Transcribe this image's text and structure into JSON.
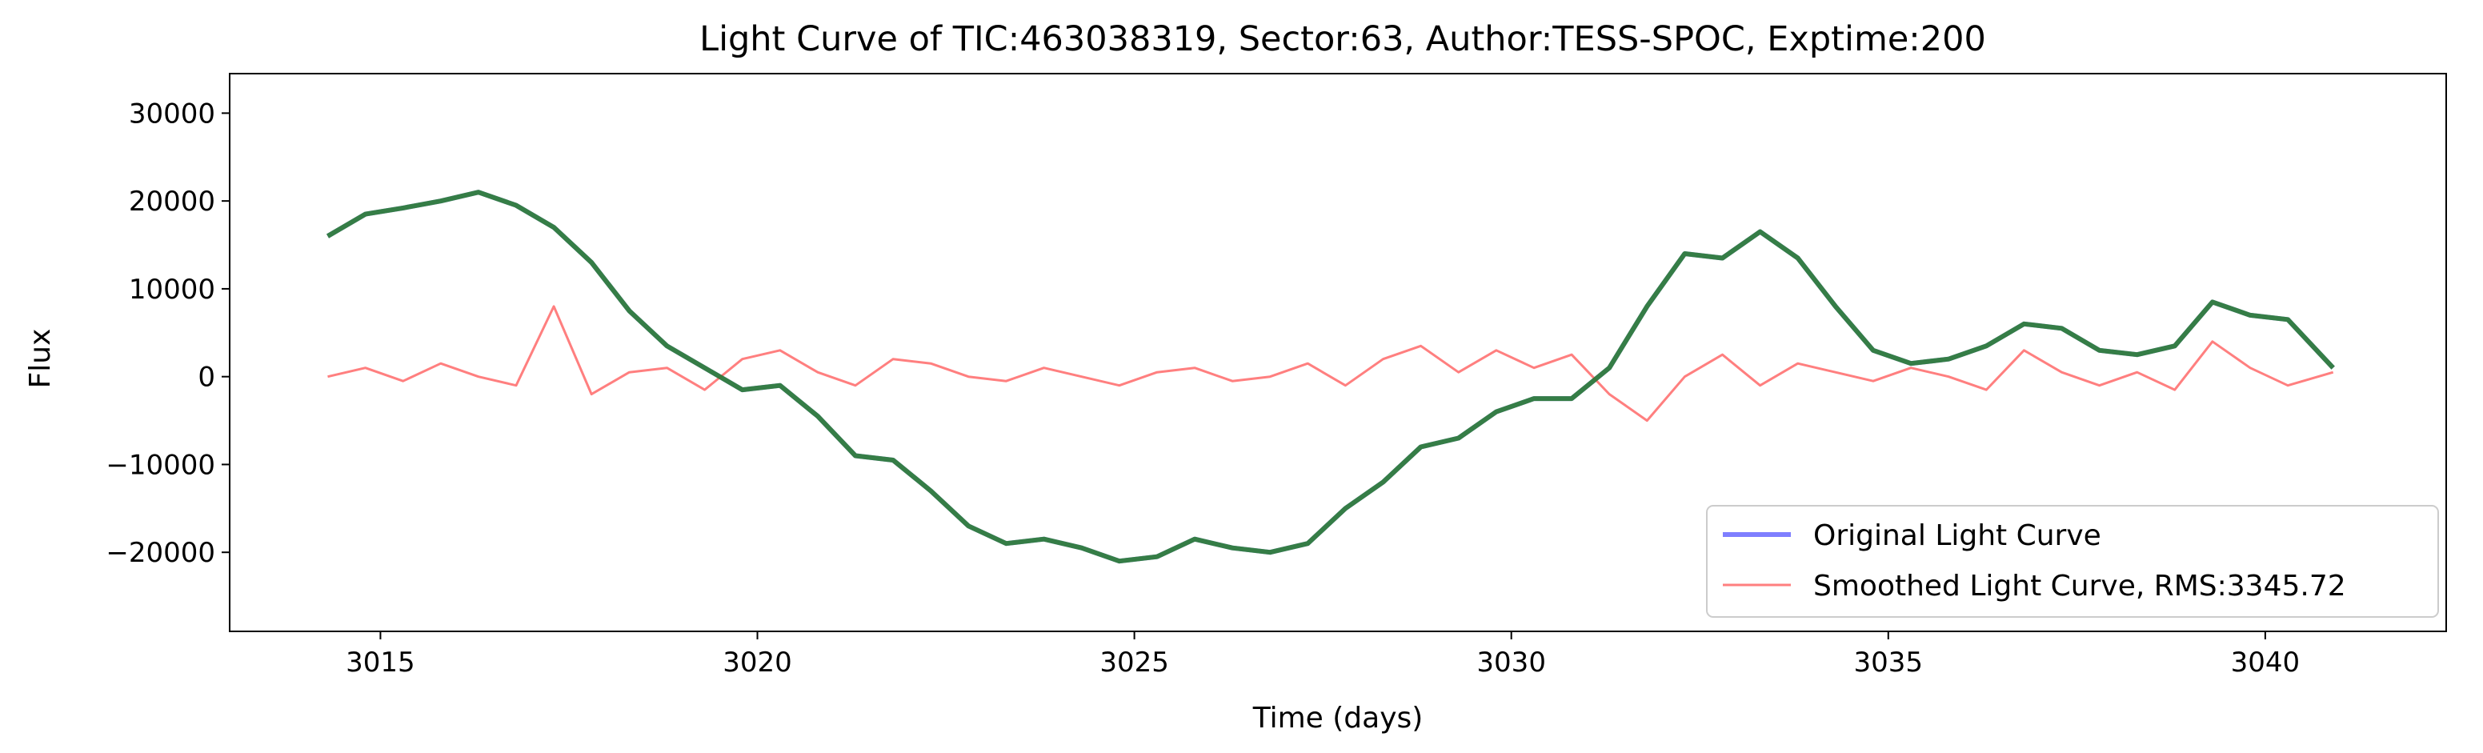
{
  "chart_data": {
    "type": "line",
    "title": "Light Curve of TIC:463038319, Sector:63, Author:TESS-SPOC, Exptime:200",
    "xlabel": "Time (days)",
    "ylabel": "Flux",
    "xlim": [
      3013.0,
      3042.4
    ],
    "ylim": [
      -29000,
      34500
    ],
    "xticks": [
      3015,
      3020,
      3025,
      3030,
      3035,
      3040
    ],
    "yticks": [
      -20000,
      -10000,
      0,
      10000,
      20000,
      30000
    ],
    "xtick_labels": [
      "3015",
      "3020",
      "3025",
      "3030",
      "3035",
      "3040"
    ],
    "ytick_labels": [
      "−20000",
      "−10000",
      "0",
      "10000",
      "20000",
      "30000"
    ],
    "grid": false,
    "legend_position": "lower-right",
    "series": [
      {
        "name": "Original Light Curve",
        "color": "#0000ff",
        "opacity": 0.5,
        "x": [
          3014.3,
          3014.8,
          3015.3,
          3015.8,
          3016.3,
          3016.8,
          3017.3,
          3017.8,
          3018.3,
          3018.8,
          3019.3,
          3019.8,
          3020.3,
          3020.8,
          3021.3,
          3021.8,
          3022.3,
          3022.8,
          3023.3,
          3023.8,
          3024.3,
          3024.8,
          3025.3,
          3025.8,
          3026.3,
          3026.8,
          3027.3,
          3027.8,
          3028.3,
          3028.8,
          3029.3,
          3029.8,
          3030.3,
          3030.8,
          3031.3,
          3031.8,
          3032.3,
          3032.8,
          3033.3,
          3033.8,
          3034.3,
          3034.8,
          3035.3,
          3035.8,
          3036.3,
          3036.8,
          3037.3,
          3037.8,
          3038.3,
          3038.8,
          3039.3,
          3039.8,
          3040.3,
          3040.9
        ],
        "y": [
          16000,
          18500,
          19200,
          20000,
          21000,
          19500,
          17000,
          13000,
          7500,
          3500,
          1000,
          -1500,
          -1000,
          -4500,
          -9000,
          -9500,
          -13000,
          -17000,
          -19000,
          -18500,
          -19500,
          -21000,
          -20500,
          -18500,
          -19500,
          -20000,
          -19000,
          -15000,
          -12000,
          -8000,
          -7000,
          -4000,
          -2500,
          -2500,
          1000,
          8000,
          14000,
          13500,
          16500,
          13500,
          8000,
          3000,
          1500,
          2000,
          3500,
          6000,
          5500,
          3000,
          2500,
          3500,
          8500,
          7000,
          6500,
          1000
        ]
      },
      {
        "name": "Smoothed Light Curve, RMS:3345.72",
        "color": "#ff0000",
        "opacity": 0.5,
        "x": [
          3014.3,
          3014.8,
          3015.3,
          3015.8,
          3016.3,
          3016.8,
          3017.3,
          3017.8,
          3018.3,
          3018.8,
          3019.3,
          3019.8,
          3020.3,
          3020.8,
          3021.3,
          3021.8,
          3022.3,
          3022.8,
          3023.3,
          3023.8,
          3024.3,
          3024.8,
          3025.3,
          3025.8,
          3026.3,
          3026.8,
          3027.3,
          3027.8,
          3028.3,
          3028.8,
          3029.3,
          3029.8,
          3030.3,
          3030.8,
          3031.3,
          3031.8,
          3032.3,
          3032.8,
          3033.3,
          3033.8,
          3034.3,
          3034.8,
          3035.3,
          3035.8,
          3036.3,
          3036.8,
          3037.3,
          3037.8,
          3038.3,
          3038.8,
          3039.3,
          3039.8,
          3040.3,
          3040.9
        ],
        "y": [
          0,
          1000,
          -500,
          1500,
          0,
          -1000,
          8000,
          -2000,
          500,
          1000,
          -1500,
          2000,
          3000,
          500,
          -1000,
          2000,
          1500,
          0,
          -500,
          1000,
          0,
          -1000,
          500,
          1000,
          -500,
          0,
          1500,
          -1000,
          2000,
          3500,
          500,
          3000,
          1000,
          2500,
          -2000,
          -5000,
          0,
          2500,
          -1000,
          1500,
          500,
          -500,
          1000,
          0,
          -1500,
          3000,
          500,
          -1000,
          500,
          -1500,
          4000,
          1000,
          -1000,
          500
        ]
      },
      {
        "name": "",
        "color": "#2e7d32",
        "opacity": 0.9,
        "x": [
          3014.3,
          3014.8,
          3015.3,
          3015.8,
          3016.3,
          3016.8,
          3017.3,
          3017.8,
          3018.3,
          3018.8,
          3019.3,
          3019.8,
          3020.3,
          3020.8,
          3021.3,
          3021.8,
          3022.3,
          3022.8,
          3023.3,
          3023.8,
          3024.3,
          3024.8,
          3025.3,
          3025.8,
          3026.3,
          3026.8,
          3027.3,
          3027.8,
          3028.3,
          3028.8,
          3029.3,
          3029.8,
          3030.3,
          3030.8,
          3031.3,
          3031.8,
          3032.3,
          3032.8,
          3033.3,
          3033.8,
          3034.3,
          3034.8,
          3035.3,
          3035.8,
          3036.3,
          3036.8,
          3037.3,
          3037.8,
          3038.3,
          3038.8,
          3039.3,
          3039.8,
          3040.3,
          3040.9
        ],
        "y": [
          16000,
          18500,
          19200,
          20000,
          21000,
          19500,
          17000,
          13000,
          7500,
          3500,
          1000,
          -1500,
          -1000,
          -4500,
          -9000,
          -9500,
          -13000,
          -17000,
          -19000,
          -18500,
          -19500,
          -21000,
          -20500,
          -18500,
          -19500,
          -20000,
          -19000,
          -15000,
          -12000,
          -8000,
          -7000,
          -4000,
          -2500,
          -2500,
          1000,
          8000,
          14000,
          13500,
          16500,
          13500,
          8000,
          3000,
          1500,
          2000,
          3500,
          6000,
          5500,
          3000,
          2500,
          3500,
          8500,
          7000,
          6500,
          1000
        ]
      }
    ]
  }
}
